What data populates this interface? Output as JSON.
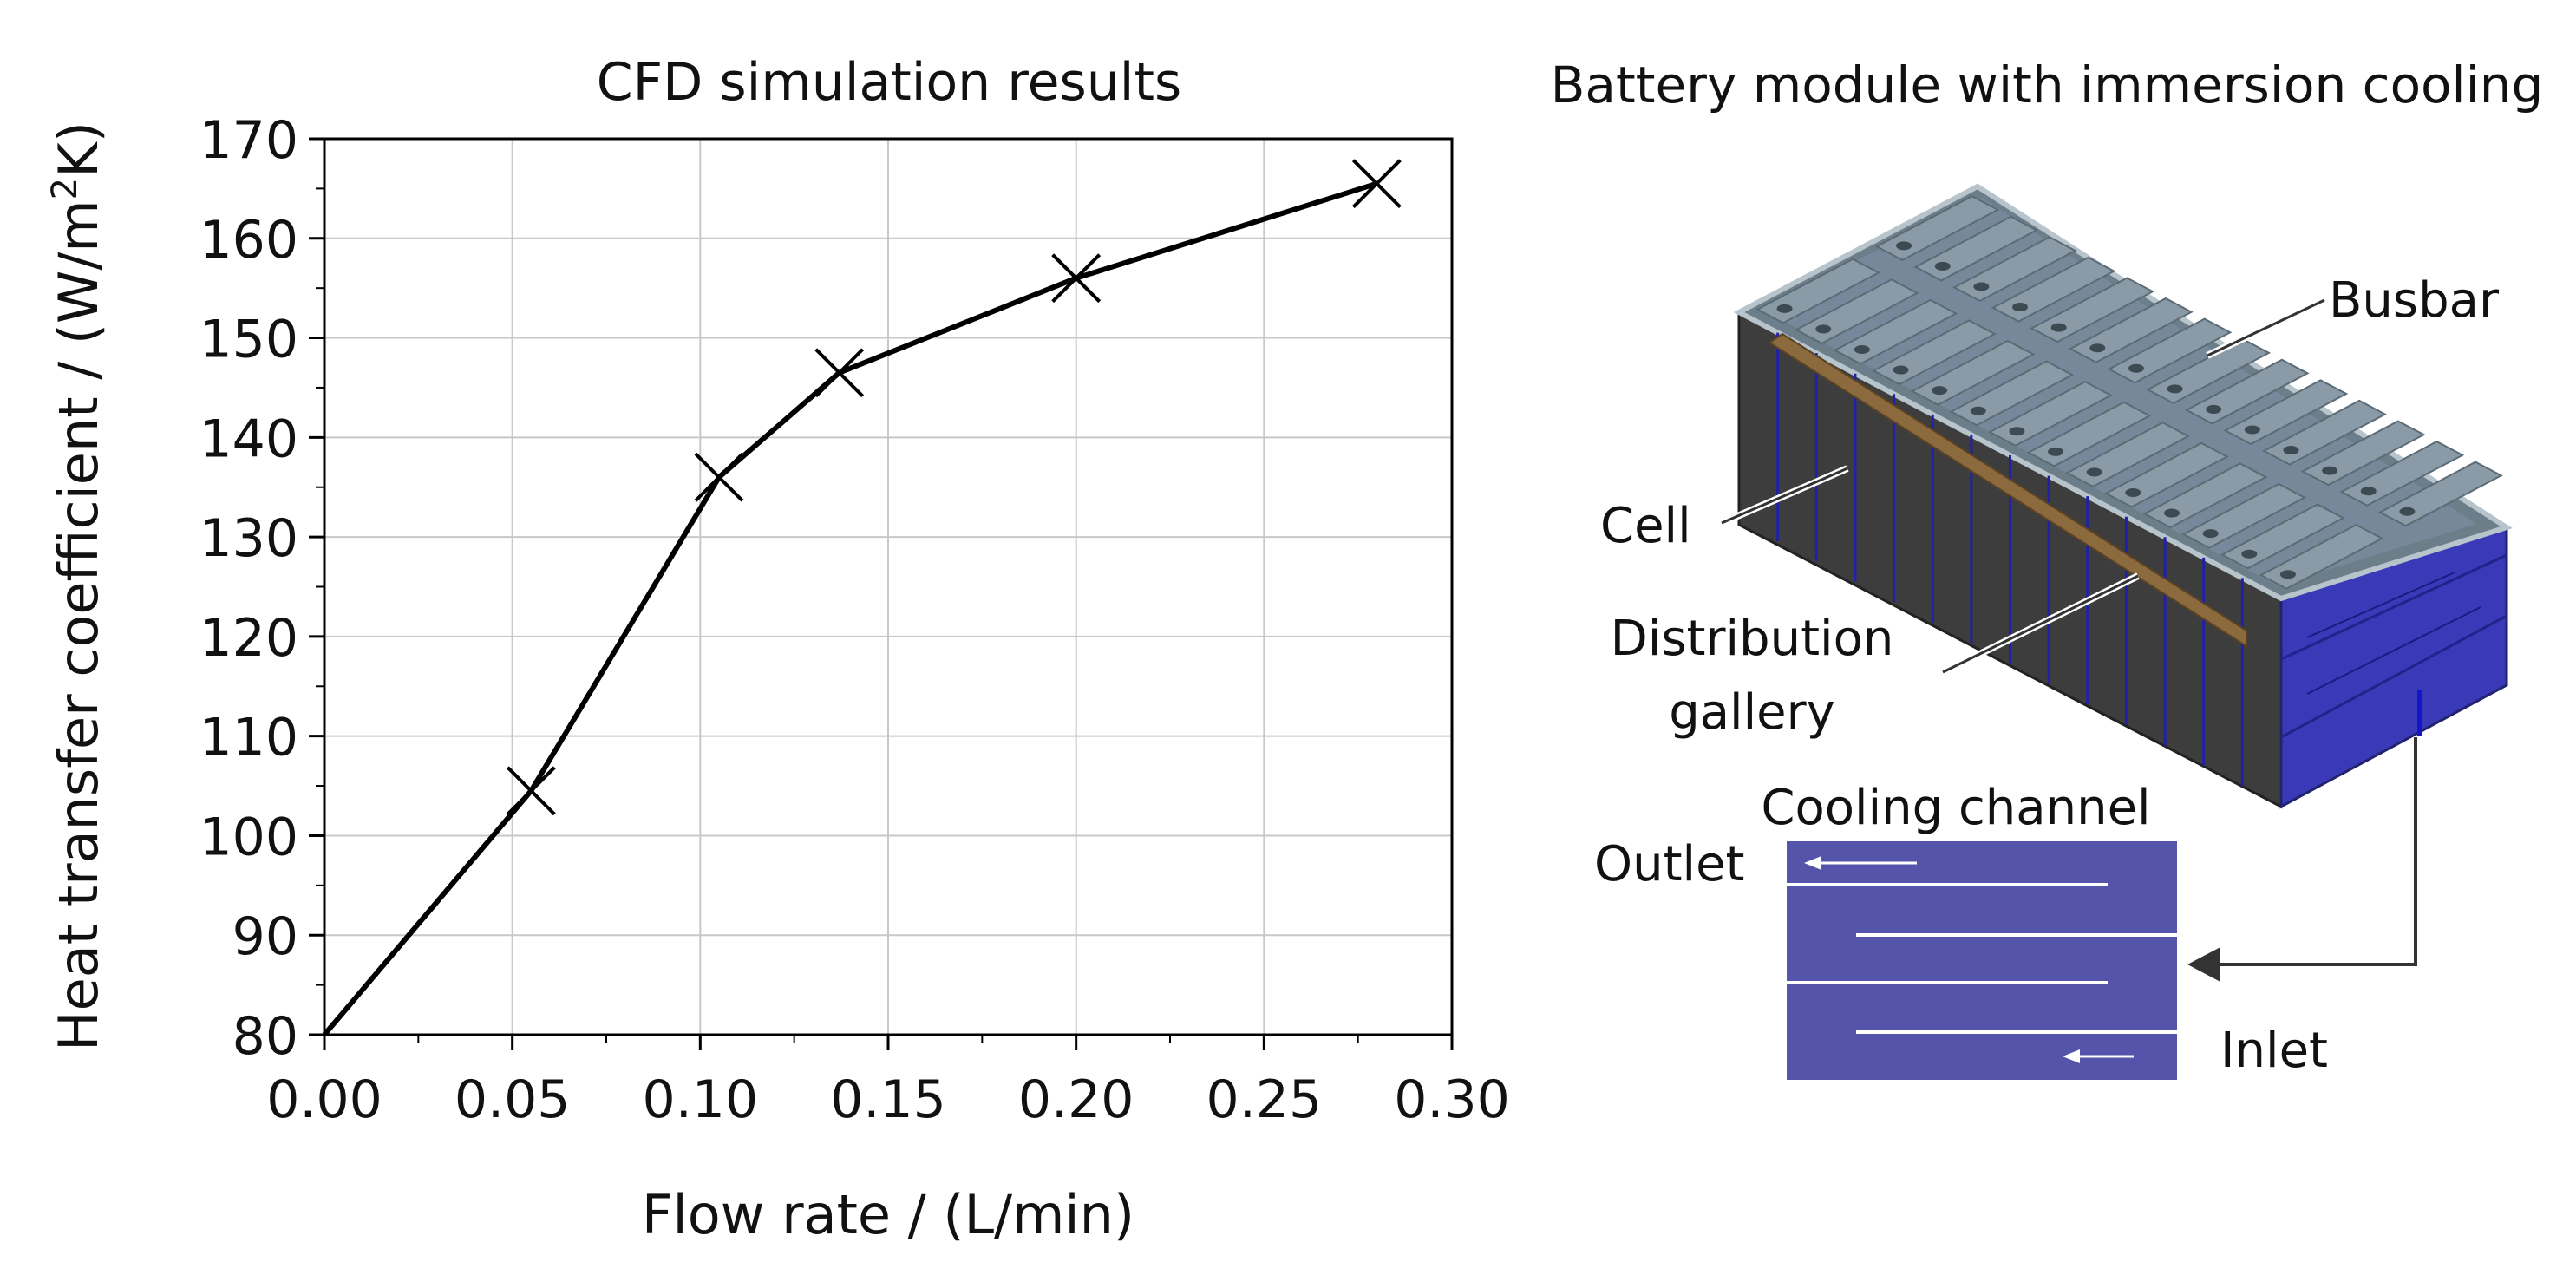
{
  "chart_data": {
    "type": "line",
    "title": "CFD simulation results",
    "xlabel": "Flow rate / (L/min)",
    "ylabel_prefix": "Heat transfer coefficient / (W/m",
    "ylabel_sup": "2",
    "ylabel_suffix": "K)",
    "x": [
      0.0,
      0.055,
      0.105,
      0.137,
      0.2,
      0.28
    ],
    "y": [
      80,
      104.5,
      136,
      146.5,
      156,
      165.5
    ],
    "marker_x": [
      0.055,
      0.105,
      0.137,
      0.2,
      0.28
    ],
    "marker_y": [
      104.5,
      136,
      146.5,
      156,
      165.5
    ],
    "xlim": [
      0.0,
      0.3
    ],
    "ylim": [
      80,
      170
    ],
    "xticks": [
      0.0,
      0.05,
      0.1,
      0.15,
      0.2,
      0.25,
      0.3
    ],
    "xtick_labels": [
      "0.00",
      "0.05",
      "0.10",
      "0.15",
      "0.20",
      "0.25",
      "0.30"
    ],
    "yticks": [
      80,
      90,
      100,
      110,
      120,
      130,
      140,
      150,
      160,
      170
    ],
    "ytick_labels": [
      "80",
      "90",
      "100",
      "110",
      "120",
      "130",
      "140",
      "150",
      "160",
      "170"
    ],
    "grid": true,
    "line_color": "#000000",
    "grid_color": "#c8c8c8"
  },
  "diagram": {
    "title": "Battery module with immersion cooling",
    "labels": {
      "busbar": "Busbar",
      "cell": "Cell",
      "distribution_line1": "Distribution",
      "distribution_line2": "gallery",
      "cooling_channel": "Cooling channel",
      "outlet": "Outlet",
      "inlet": "Inlet"
    },
    "colors": {
      "side_face": "#3d3d3d",
      "top_face": "#6c7e8a",
      "cell_cap": "#8a9aa6",
      "end_face": "#3a3ab8",
      "gallery": "#8b6a3e",
      "channel": "#5454aa",
      "arrow": "#333333"
    }
  }
}
